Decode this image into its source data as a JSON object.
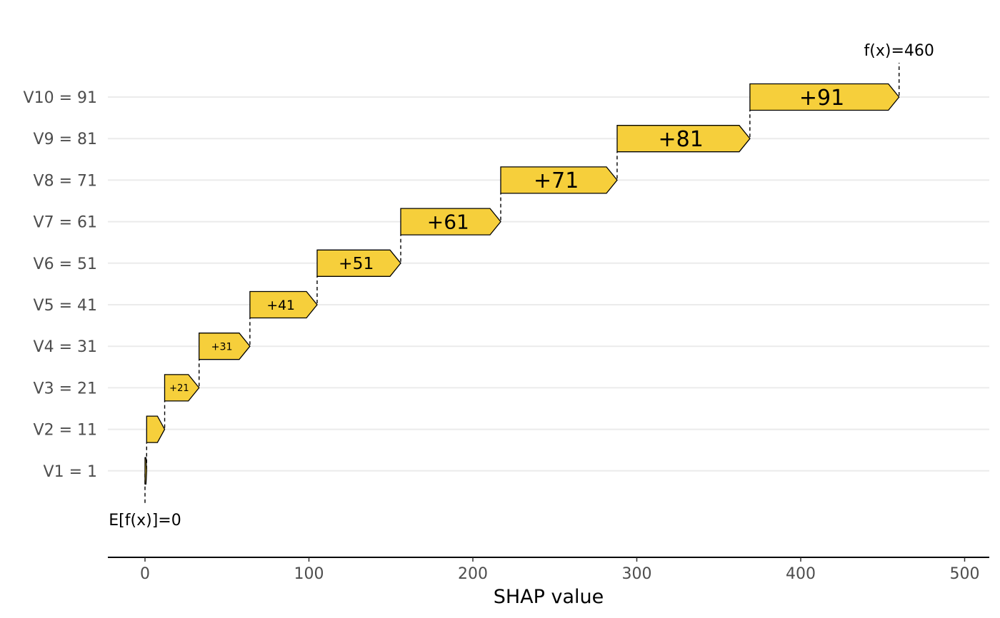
{
  "chart_data": {
    "type": "waterfall",
    "title": "",
    "xlabel": "SHAP value",
    "ylabel": "",
    "xlim": [
      -22,
      515
    ],
    "x_ticks": [
      0,
      100,
      200,
      300,
      400,
      500
    ],
    "baseline": 0,
    "baseline_label": "E[f(x)]=0",
    "final_value": 460,
    "final_label": "f(x)=460",
    "bar_color": "#F6CF3B",
    "features": [
      {
        "label": "V1 = 1",
        "value": 1,
        "bar_label": ""
      },
      {
        "label": "V2 = 11",
        "value": 11,
        "bar_label": ""
      },
      {
        "label": "V3 = 21",
        "value": 21,
        "bar_label": "+21"
      },
      {
        "label": "V4 = 31",
        "value": 31,
        "bar_label": "+31"
      },
      {
        "label": "V5 = 41",
        "value": 41,
        "bar_label": "+41"
      },
      {
        "label": "V6 = 51",
        "value": 51,
        "bar_label": "+51"
      },
      {
        "label": "V7 = 61",
        "value": 61,
        "bar_label": "+61"
      },
      {
        "label": "V8 = 71",
        "value": 71,
        "bar_label": "+71"
      },
      {
        "label": "V9 = 81",
        "value": 81,
        "bar_label": "+81"
      },
      {
        "label": "V10 = 91",
        "value": 91,
        "bar_label": "+91"
      }
    ]
  }
}
